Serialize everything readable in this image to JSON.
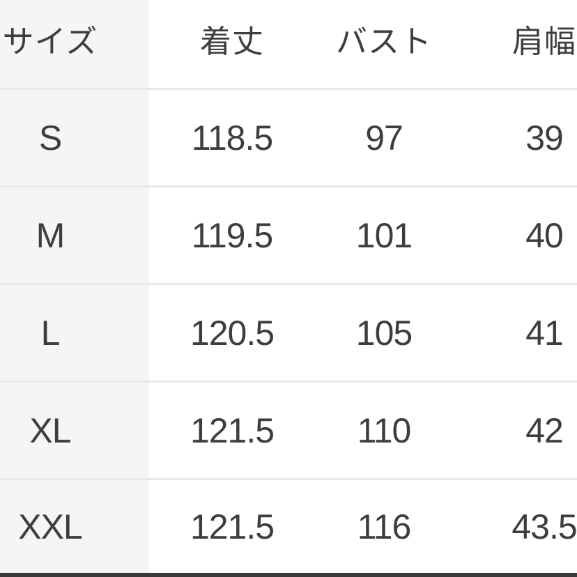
{
  "chart_data": {
    "type": "table",
    "columns": [
      "サイズ",
      "着丈",
      "バスト",
      "肩幅"
    ],
    "rows": [
      [
        "S",
        "118.5",
        "97",
        "39"
      ],
      [
        "M",
        "119.5",
        "101",
        "40"
      ],
      [
        "L",
        "120.5",
        "105",
        "41"
      ],
      [
        "XL",
        "121.5",
        "110",
        "42"
      ],
      [
        "XXL",
        "121.5",
        "116",
        "43.5"
      ]
    ]
  },
  "colors": {
    "row_header_bg": "#f5f5f6",
    "divider": "#e9e9ea",
    "text": "#3d3d3f",
    "bottom_bar": "#3a3a3c"
  }
}
